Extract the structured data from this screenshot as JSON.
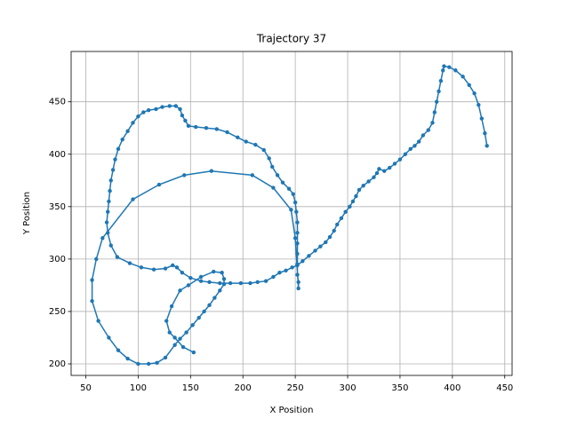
{
  "chart_data": {
    "type": "line",
    "title": "Trajectory 37",
    "x_label": "X Position",
    "y_label": "Y Position",
    "grid": true,
    "marker": true,
    "xlim": [
      36,
      457
    ],
    "ylim": [
      189,
      498
    ],
    "xticks": [
      50,
      100,
      150,
      200,
      250,
      300,
      350,
      400,
      450
    ],
    "yticks": [
      200,
      250,
      300,
      350,
      400,
      450
    ],
    "series": [
      {
        "color": "#1f77b4",
        "x": [
          433,
          431,
          428,
          425,
          421,
          416,
          410,
          403,
          397,
          392,
          391,
          389,
          387,
          385,
          383,
          381,
          377,
          372,
          368,
          364,
          360,
          355,
          350,
          345,
          340,
          335,
          330,
          328,
          325,
          320,
          315,
          311,
          308,
          305,
          302,
          298,
          294,
          290,
          287,
          283,
          279,
          274,
          269,
          263,
          257,
          252,
          247,
          241,
          235,
          229,
          222,
          214,
          207,
          198,
          188,
          178,
          168,
          160,
          150,
          142,
          137,
          133,
          126,
          115,
          103,
          92,
          80,
          74,
          71,
          70,
          71,
          72,
          73,
          74,
          76,
          78,
          81,
          85,
          90,
          95,
          100,
          105,
          110,
          117,
          123,
          130,
          136,
          140,
          142,
          145,
          148,
          155,
          165,
          175,
          185,
          195,
          203,
          212,
          220,
          225,
          228,
          233,
          238,
          244,
          248,
          250,
          251,
          252,
          252,
          252,
          252,
          252,
          252,
          253,
          253,
          250,
          246,
          229,
          209,
          170,
          144,
          120,
          95,
          66,
          60,
          56,
          56,
          62,
          72,
          81,
          90,
          100,
          110,
          118,
          126,
          135,
          140,
          146,
          152,
          158,
          163,
          168,
          173,
          178,
          182,
          182,
          180,
          172,
          160,
          148,
          140,
          132,
          127,
          130,
          135,
          143,
          153
        ],
        "y": [
          408,
          420,
          434,
          447,
          458,
          466,
          474,
          480,
          483,
          484,
          480,
          470,
          460,
          450,
          440,
          430,
          423,
          418,
          412,
          408,
          405,
          400,
          395,
          391,
          387,
          384,
          386,
          382,
          378,
          374,
          370,
          366,
          360,
          355,
          350,
          345,
          339,
          333,
          327,
          321,
          316,
          312,
          308,
          303,
          298,
          294,
          292,
          289,
          287,
          283,
          279,
          278,
          277,
          277,
          277,
          277,
          278,
          279,
          282,
          287,
          292,
          294,
          291,
          290,
          292,
          296,
          302,
          313,
          325,
          335,
          345,
          355,
          365,
          375,
          385,
          395,
          405,
          414,
          422,
          430,
          436,
          440,
          442,
          443,
          445,
          446,
          446,
          443,
          437,
          432,
          427,
          426,
          425,
          424,
          421,
          416,
          412,
          409,
          404,
          396,
          388,
          380,
          373,
          367,
          362,
          354,
          345,
          335,
          325,
          315,
          305,
          295,
          285,
          278,
          272,
          320,
          347,
          368,
          380,
          384,
          380,
          371,
          357,
          320,
          300,
          280,
          260,
          241,
          225,
          213,
          205,
          200,
          200,
          201,
          206,
          218,
          224,
          230,
          237,
          244,
          250,
          256,
          263,
          270,
          276,
          281,
          287,
          288,
          283,
          275,
          270,
          255,
          241,
          230,
          225,
          216,
          211
        ]
      }
    ]
  }
}
